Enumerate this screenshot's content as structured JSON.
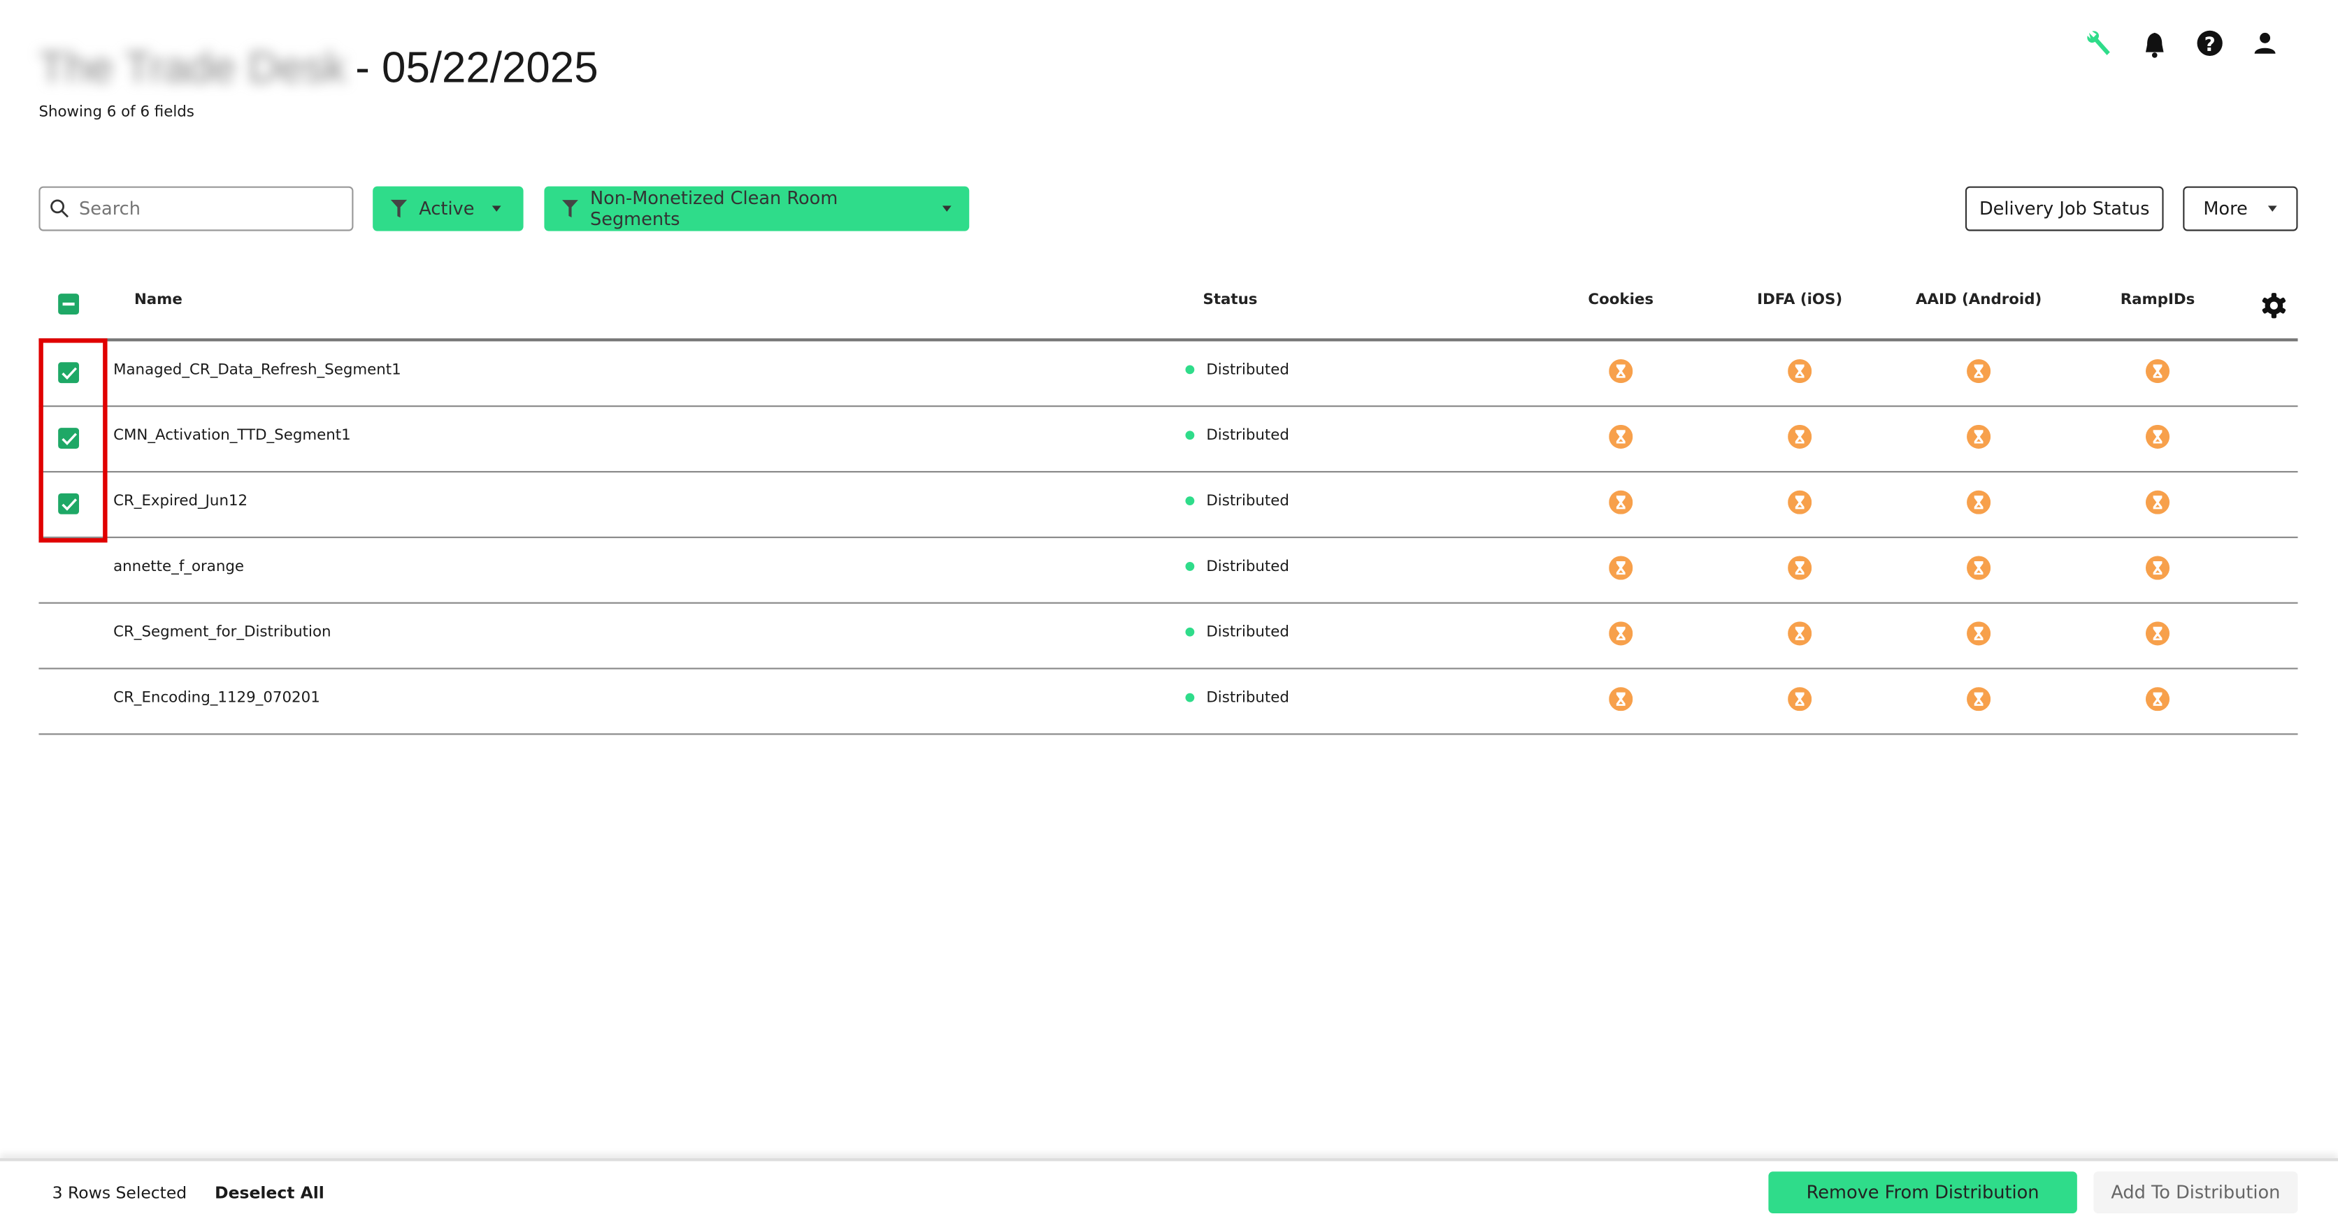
{
  "header": {
    "account_name": "The Trade Desk",
    "title_suffix": "- 05/22/2025",
    "subtitle": "Showing 6 of 6 fields",
    "icons": [
      "wrench-icon",
      "bell-icon",
      "help-icon",
      "user-icon"
    ]
  },
  "toolbar": {
    "search_placeholder": "Search",
    "filter_status": "Active",
    "filter_segment": "Non-Monetized Clean Room Segments",
    "delivery_job_status": "Delivery Job Status",
    "more": "More"
  },
  "table": {
    "columns": {
      "name": "Name",
      "status": "Status",
      "cookies": "Cookies",
      "idfa": "IDFA (iOS)",
      "aaid": "AAID (Android)",
      "rampids": "RampIDs"
    },
    "rows": [
      {
        "name": "Managed_CR_Data_Refresh_Segment1",
        "status": "Distributed",
        "selected": true
      },
      {
        "name": "CMN_Activation_TTD_Segment1",
        "status": "Distributed",
        "selected": true
      },
      {
        "name": "CR_Expired_Jun12",
        "status": "Distributed",
        "selected": true
      },
      {
        "name": "annette_f_orange",
        "status": "Distributed",
        "selected": false
      },
      {
        "name": "CR_Segment_for_Distribution",
        "status": "Distributed",
        "selected": false
      },
      {
        "name": "CR_Encoding_1129_070201",
        "status": "Distributed",
        "selected": false
      }
    ],
    "cell_icon": "hourglass-pending-icon"
  },
  "footer": {
    "rows_selected": "3 Rows Selected",
    "deselect_all": "Deselect All",
    "remove": "Remove From Distribution",
    "add": "Add To Distribution"
  },
  "colors": {
    "accent": "#2fdc8a",
    "checkbox": "#1ea866",
    "pending": "#f7a04b",
    "highlight": "#e00000"
  }
}
